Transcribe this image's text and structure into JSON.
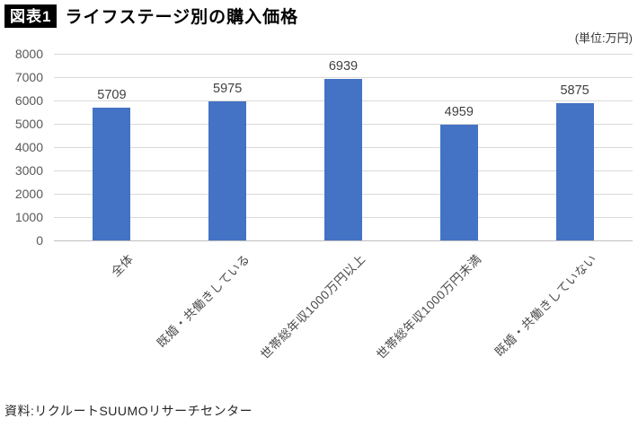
{
  "header": {
    "badge": "図表1",
    "title": "ライフステージ別の購入価格",
    "unit_label": "(単位:万円)"
  },
  "footer": {
    "source": "資料:リクルートSUUMOリサーチセンター"
  },
  "chart_data": {
    "type": "bar",
    "title": "ライフステージ別の購入価格",
    "unit": "万円",
    "categories": [
      "全体",
      "既婚・共働きしている",
      "世帯総年収1000万円以上",
      "世帯総年収1000万円未満",
      "既婚・共働きしていない"
    ],
    "values": [
      5709,
      5975,
      6939,
      4959,
      5875
    ],
    "data_labels_shown": true,
    "ylim": [
      0,
      8000
    ],
    "ytick_step": 1000,
    "grid": true,
    "legend": "none",
    "category_rotation_deg": -45,
    "colors": {
      "bar": "#4472c4",
      "gridline": "#d9d9d9",
      "baseline": "#bfbfbf",
      "axis_text": "#595959",
      "data_label_text": "#404040"
    }
  }
}
